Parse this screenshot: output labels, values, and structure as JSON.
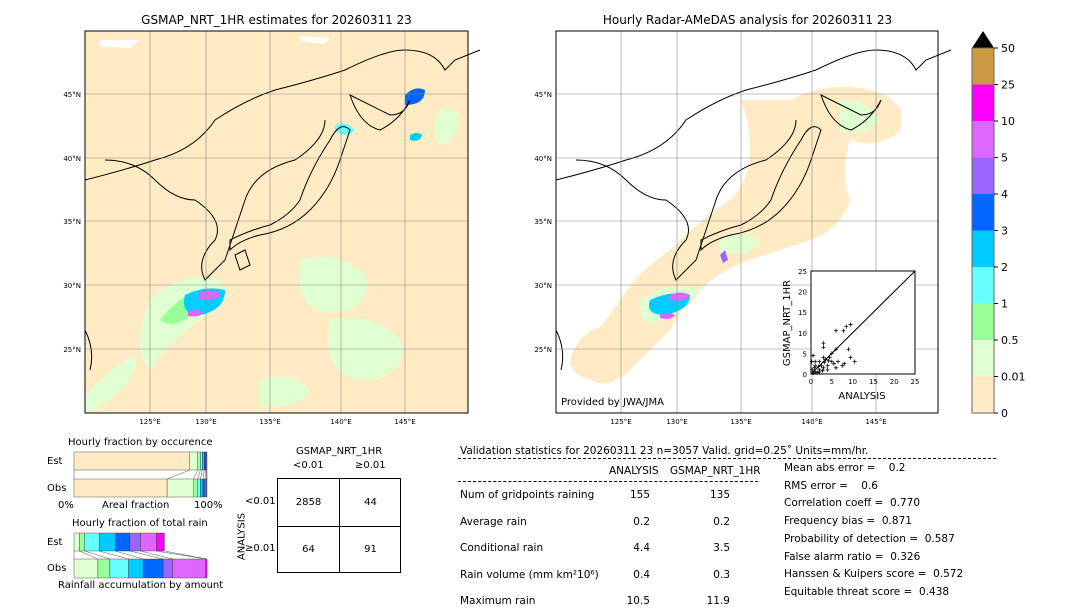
{
  "left_map": {
    "title": "GSMAP_NRT_1HR estimates for 20260311 23"
  },
  "right_map": {
    "title": "Hourly Radar-AMeDAS analysis for 20260311 23",
    "credit": "Provided by JWA/JMA"
  },
  "axes": {
    "lon_ticks": [
      "125°E",
      "130°E",
      "135°E",
      "140°E",
      "145°E"
    ],
    "lat_ticks": [
      "45°N",
      "40°N",
      "35°N",
      "30°N",
      "25°N"
    ]
  },
  "colorbar": {
    "labels": [
      "0",
      "0.01",
      "0.5",
      "1",
      "2",
      "3",
      "4",
      "5",
      "10",
      "25",
      "50"
    ],
    "colors": [
      "#FFEBC3",
      "#E0FFD0",
      "#99FF99",
      "#66FFFF",
      "#00CCFF",
      "#0066FF",
      "#9966FF",
      "#DD66FF",
      "#FF00FF",
      "#CC9944"
    ],
    "extend_color": "#000000"
  },
  "chart_data": [
    {
      "type": "scatter",
      "xlabel": "ANALYSIS",
      "ylabel": "GSMAP_NRT_1HR",
      "xlim": [
        0,
        25
      ],
      "ylim": [
        0,
        25
      ],
      "ticks": [
        "0",
        "5",
        "10",
        "15",
        "20",
        "25"
      ],
      "diagonal": true,
      "points": [
        [
          6,
          10.5
        ],
        [
          7.8,
          10.5
        ],
        [
          8.5,
          11.5
        ],
        [
          9.5,
          12
        ],
        [
          6,
          6
        ],
        [
          3,
          7.5
        ],
        [
          3,
          6.5
        ],
        [
          9,
          6
        ],
        [
          9.5,
          4
        ],
        [
          10.5,
          3
        ],
        [
          8,
          2.5
        ],
        [
          7.5,
          2
        ],
        [
          6.5,
          3
        ],
        [
          5,
          3
        ],
        [
          4,
          2
        ],
        [
          3,
          4
        ],
        [
          2,
          3
        ],
        [
          1,
          2
        ],
        [
          0.5,
          4.5
        ],
        [
          0.3,
          1
        ],
        [
          1,
          0.5
        ],
        [
          2,
          1
        ],
        [
          1.5,
          0.3
        ],
        [
          3,
          1.5
        ],
        [
          4,
          1
        ],
        [
          5,
          5
        ],
        [
          2.5,
          2
        ],
        [
          0.5,
          0.2
        ],
        [
          1,
          3
        ],
        [
          2,
          0.5
        ],
        [
          3.5,
          3.5
        ],
        [
          4.5,
          4
        ],
        [
          5.5,
          2.5
        ],
        [
          6,
          1.5
        ],
        [
          0.2,
          3
        ],
        [
          0.8,
          1.5
        ],
        [
          1.8,
          1.8
        ],
        [
          2.8,
          0.8
        ],
        [
          3.2,
          2.8
        ],
        [
          4.2,
          3.2
        ]
      ]
    },
    {
      "type": "bar",
      "title": "Hourly fraction by occurence",
      "xlabel": "Areal fraction",
      "xlabel_left": "0%",
      "xlabel_right": "100%",
      "categories": [
        "Est",
        "Obs"
      ],
      "stacked_fractions": {
        "Est": [
          0.87,
          0.06,
          0.02,
          0.015,
          0.015,
          0.01,
          0.005,
          0.005
        ],
        "Obs": [
          0.7,
          0.2,
          0.03,
          0.02,
          0.02,
          0.015,
          0.01,
          0.005
        ]
      }
    },
    {
      "type": "bar",
      "title": "Hourly fraction of total rain",
      "xlabel": "Rainfall accumulation by amount",
      "categories": [
        "Est",
        "Obs"
      ],
      "stacked_fractions": {
        "Est": [
          0.04,
          0.04,
          0.11,
          0.12,
          0.11,
          0.08,
          0.12,
          0.06
        ],
        "Obs": [
          0.18,
          0.09,
          0.14,
          0.11,
          0.15,
          0.07,
          0.25,
          0.01
        ]
      }
    },
    {
      "type": "table",
      "title": "GSMAP_NRT_1HR",
      "col_headers": [
        "<0.01",
        "≥0.01"
      ],
      "row_label": "ANALYSIS",
      "row_headers": [
        "<0.01",
        "≥0.01"
      ],
      "cells": [
        [
          "2858",
          "44"
        ],
        [
          "64",
          "91"
        ]
      ]
    }
  ],
  "stats": {
    "header": "Validation statistics for 20260311 23  n=3057 Valid. grid=0.25˚ Units=mm/hr.",
    "col1": "ANALYSIS",
    "col2": "GSMAP_NRT_1HR",
    "rows": [
      {
        "label": "Num of gridpoints raining",
        "a": "155",
        "g": "135"
      },
      {
        "label": "Average rain",
        "a": "0.2",
        "g": "0.2"
      },
      {
        "label": "Conditional rain",
        "a": "4.4",
        "g": "3.5"
      },
      {
        "label": "Rain volume (mm km²10⁶)",
        "a": "0.4",
        "g": "0.3"
      },
      {
        "label": "Maximum rain",
        "a": "10.5",
        "g": "11.9"
      }
    ],
    "scores": [
      "Mean abs error =    0.2",
      "RMS error =    0.6",
      "Correlation coeff =  0.770",
      "Frequency bias =  0.871",
      "Probability of detection =  0.587",
      "False alarm ratio =  0.326",
      "Hanssen & Kuipers score =  0.572",
      "Equitable threat score =  0.438"
    ]
  }
}
